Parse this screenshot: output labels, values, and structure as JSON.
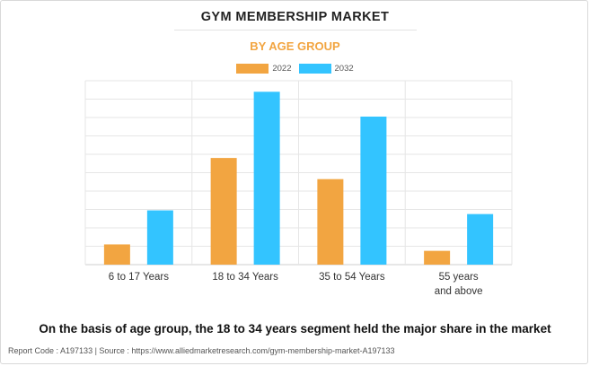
{
  "chart_data": {
    "type": "bar",
    "title": "GYM MEMBERSHIP MARKET",
    "subtitle": "BY AGE GROUP",
    "categories": [
      [
        "6 to 17 Years"
      ],
      [
        "18 to 34 Years"
      ],
      [
        "35 to 54 Years"
      ],
      [
        "55 years",
        "and above"
      ]
    ],
    "series": [
      {
        "name": "2022",
        "values": [
          11,
          58,
          46.5,
          7.5
        ],
        "color": "#f2a541"
      },
      {
        "name": "2032",
        "values": [
          29.5,
          94,
          80.5,
          27.5
        ],
        "color": "#33c4ff"
      }
    ],
    "ylim": [
      0,
      100
    ],
    "grid": true,
    "legend_position": "top-center",
    "xlabel": "",
    "ylabel": ""
  },
  "footnote": "On the basis of age group, the 18 to 34 years segment held the major share in the market",
  "source": "Report Code : A197133  |  Source : https://www.alliedmarketresearch.com/gym-membership-market-A197133"
}
